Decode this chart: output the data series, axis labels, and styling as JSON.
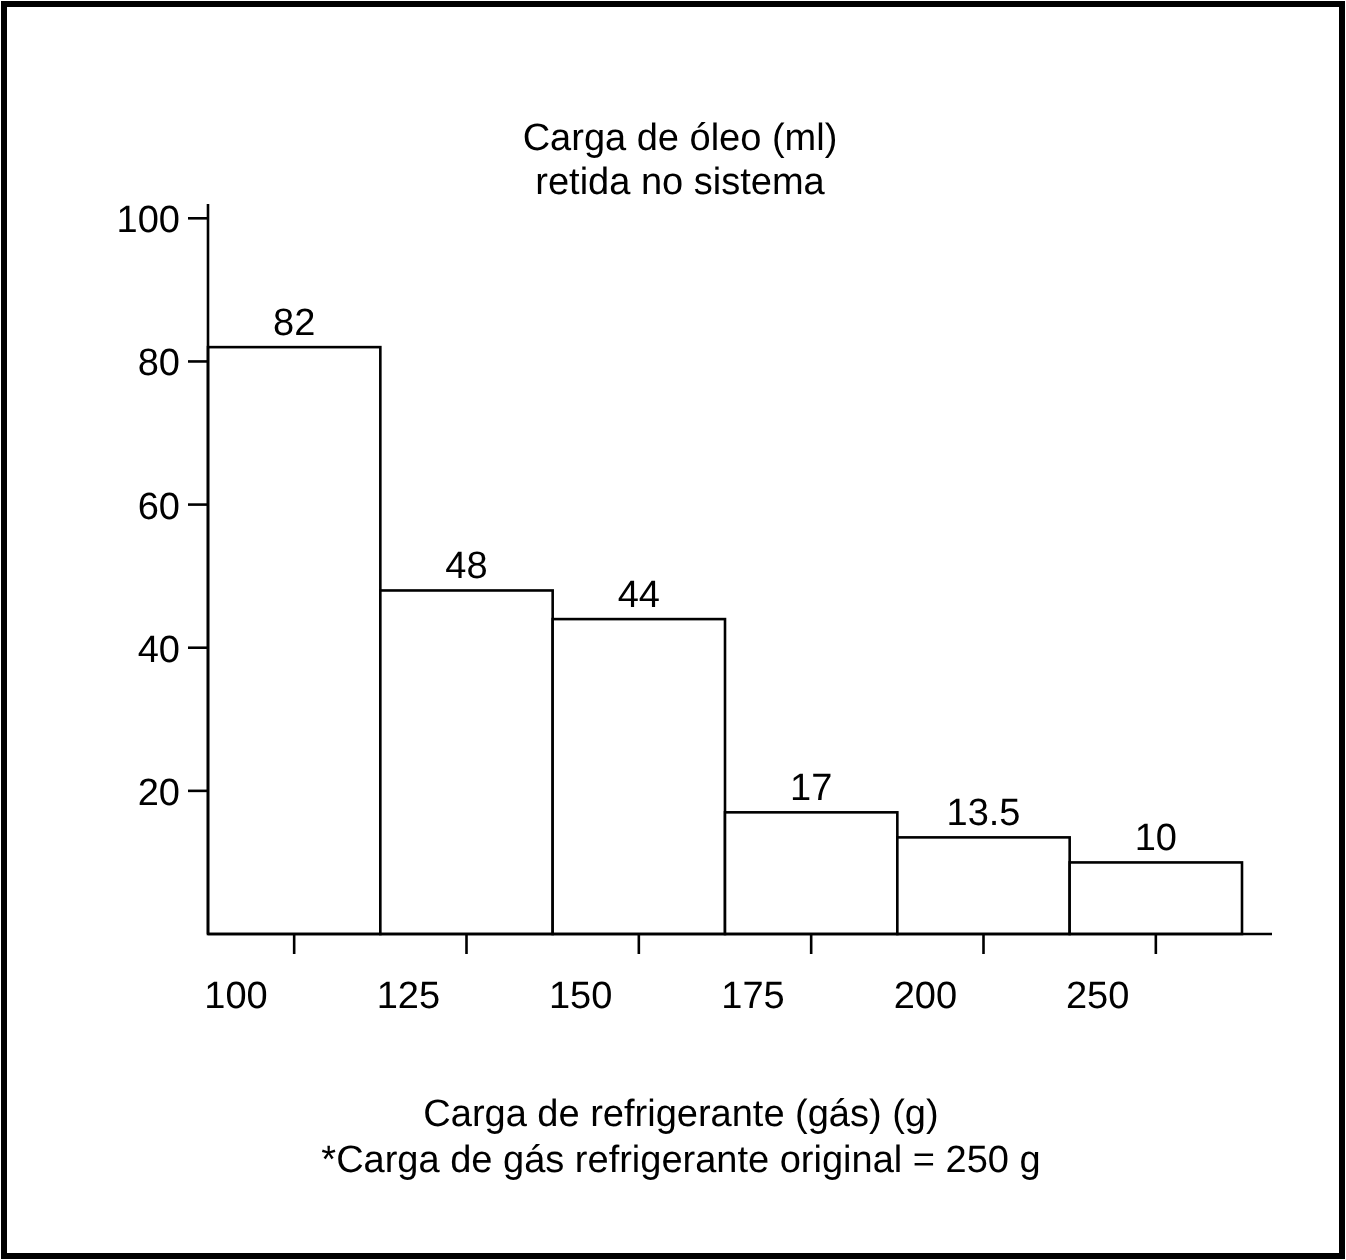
{
  "chart_data": {
    "type": "bar",
    "title": "Carga de óleo (ml)\nretida no sistema",
    "xlabel": "Carga de refrigerante (gás) (g)",
    "annotations": [
      "*Carga de gás refrigerante original = 250 g"
    ],
    "categories": [
      "100",
      "125",
      "150",
      "175",
      "200",
      "250"
    ],
    "values": [
      82,
      48,
      44,
      17,
      13.5,
      10
    ],
    "color": "#ffffff",
    "data_labels": true,
    "ylim": [
      0,
      102
    ],
    "yticks": [
      20,
      40,
      60,
      80,
      100
    ],
    "grid": false
  }
}
